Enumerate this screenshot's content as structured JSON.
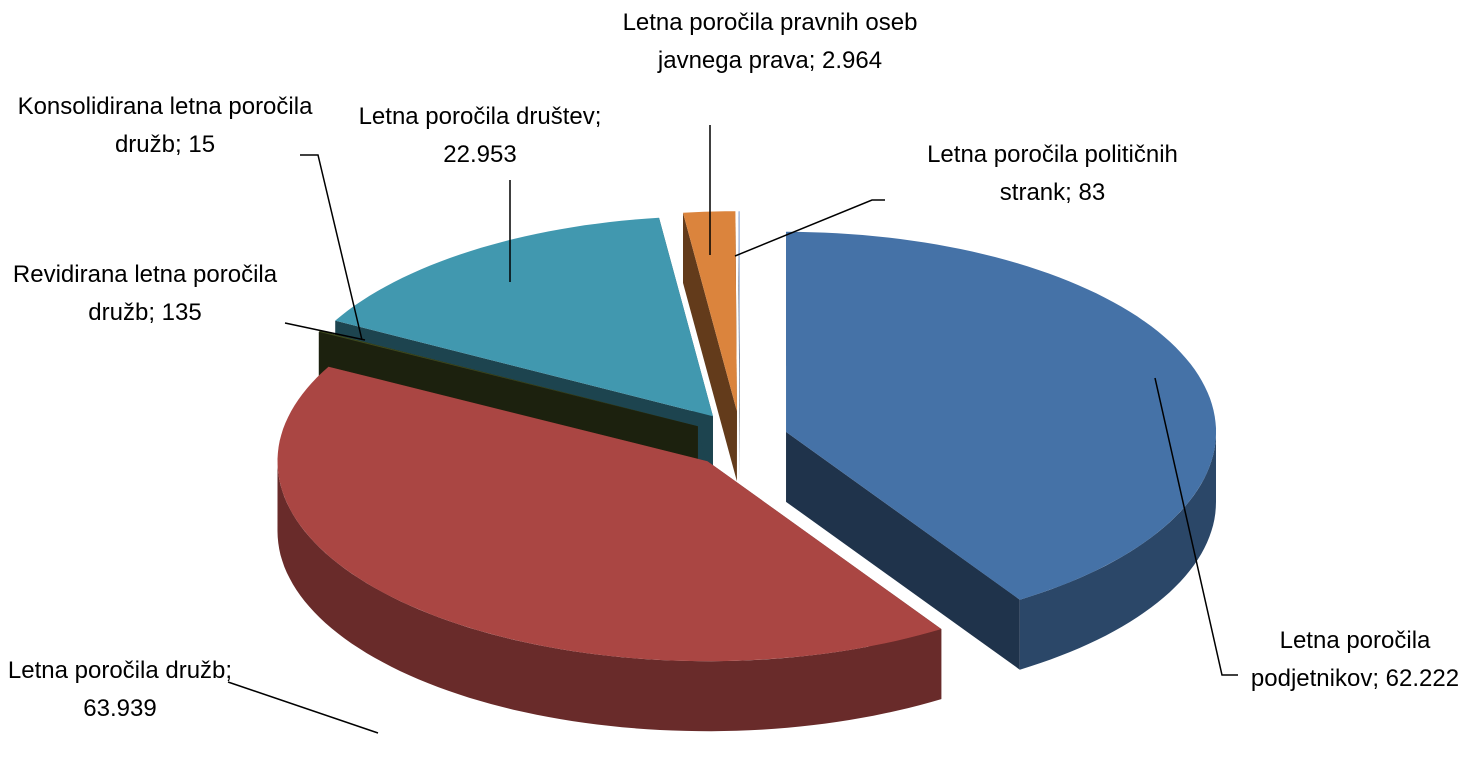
{
  "chart_data": {
    "type": "pie3d",
    "categories": [
      "Letna poročila podjetnikov",
      "Letna poročila družb",
      "Revidirana letna poročila družb",
      "Konsolidirana letna poročila družb",
      "Letna poročila društev",
      "Letna poročila pravnih oseb javnega prava",
      "Letna poročila političnih strank"
    ],
    "values": [
      62222,
      63939,
      135,
      15,
      22953,
      2964,
      83
    ],
    "value_labels": [
      "62.222",
      "63.939",
      "135",
      "15",
      "22.953",
      "2.964",
      "83"
    ],
    "label_separator": "; ",
    "colors": [
      "#4572a7",
      "#aa4643",
      "#3f4a1e",
      "#6b7f3a",
      "#4198af",
      "#db843d",
      "#a9bde0"
    ]
  }
}
